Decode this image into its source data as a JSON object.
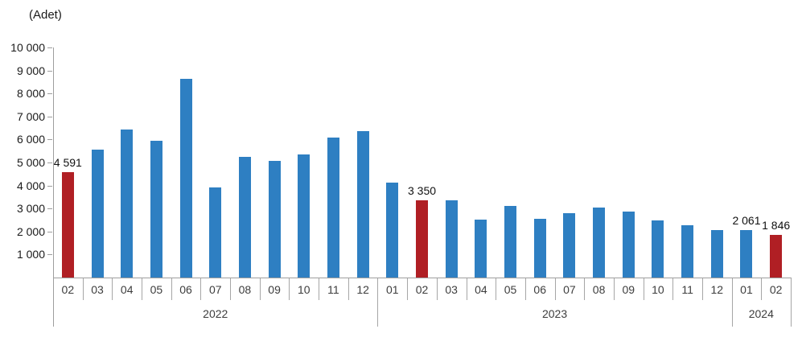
{
  "chart_data": {
    "type": "bar",
    "title": "(Adet)",
    "ylabel": "(Adet)",
    "ylim": [
      0,
      10000
    ],
    "ytick_step": 1000,
    "ytick_labels": [
      "1 000",
      "2 000",
      "3 000",
      "4 000",
      "5 000",
      "6 000",
      "7 000",
      "8 000",
      "9 000",
      "10 000"
    ],
    "grid": false,
    "legend": false,
    "colors": {
      "bar": "#2e7fc2",
      "highlight": "#b01f24",
      "axis": "#9e9e9e",
      "tick_text": "#1a1a1a",
      "category_text": "#3d3d3d"
    },
    "bars": [
      {
        "year": "2022",
        "month": "02",
        "value": 4591,
        "highlight": true,
        "label": "4 591"
      },
      {
        "year": "2022",
        "month": "03",
        "value": 5550,
        "highlight": false,
        "label": ""
      },
      {
        "year": "2022",
        "month": "04",
        "value": 6430,
        "highlight": false,
        "label": ""
      },
      {
        "year": "2022",
        "month": "05",
        "value": 5940,
        "highlight": false,
        "label": ""
      },
      {
        "year": "2022",
        "month": "06",
        "value": 8620,
        "highlight": false,
        "label": ""
      },
      {
        "year": "2022",
        "month": "07",
        "value": 3900,
        "highlight": false,
        "label": ""
      },
      {
        "year": "2022",
        "month": "08",
        "value": 5240,
        "highlight": false,
        "label": ""
      },
      {
        "year": "2022",
        "month": "09",
        "value": 5060,
        "highlight": false,
        "label": ""
      },
      {
        "year": "2022",
        "month": "10",
        "value": 5340,
        "highlight": false,
        "label": ""
      },
      {
        "year": "2022",
        "month": "11",
        "value": 6080,
        "highlight": false,
        "label": ""
      },
      {
        "year": "2022",
        "month": "12",
        "value": 6370,
        "highlight": false,
        "label": ""
      },
      {
        "year": "2023",
        "month": "01",
        "value": 4130,
        "highlight": false,
        "label": ""
      },
      {
        "year": "2023",
        "month": "02",
        "value": 3350,
        "highlight": true,
        "label": "3 350"
      },
      {
        "year": "2023",
        "month": "03",
        "value": 3370,
        "highlight": false,
        "label": ""
      },
      {
        "year": "2023",
        "month": "04",
        "value": 2520,
        "highlight": false,
        "label": ""
      },
      {
        "year": "2023",
        "month": "05",
        "value": 3110,
        "highlight": false,
        "label": ""
      },
      {
        "year": "2023",
        "month": "06",
        "value": 2560,
        "highlight": false,
        "label": ""
      },
      {
        "year": "2023",
        "month": "07",
        "value": 2800,
        "highlight": false,
        "label": ""
      },
      {
        "year": "2023",
        "month": "08",
        "value": 3040,
        "highlight": false,
        "label": ""
      },
      {
        "year": "2023",
        "month": "09",
        "value": 2880,
        "highlight": false,
        "label": ""
      },
      {
        "year": "2023",
        "month": "10",
        "value": 2480,
        "highlight": false,
        "label": ""
      },
      {
        "year": "2023",
        "month": "11",
        "value": 2290,
        "highlight": false,
        "label": ""
      },
      {
        "year": "2023",
        "month": "12",
        "value": 2050,
        "highlight": false,
        "label": ""
      },
      {
        "year": "2024",
        "month": "01",
        "value": 2061,
        "highlight": false,
        "label": "2 061"
      },
      {
        "year": "2024",
        "month": "02",
        "value": 1846,
        "highlight": true,
        "label": "1 846"
      }
    ],
    "year_groups": [
      {
        "label": "2022",
        "span": 11
      },
      {
        "label": "2023",
        "span": 12
      },
      {
        "label": "2024",
        "span": 2
      }
    ]
  }
}
